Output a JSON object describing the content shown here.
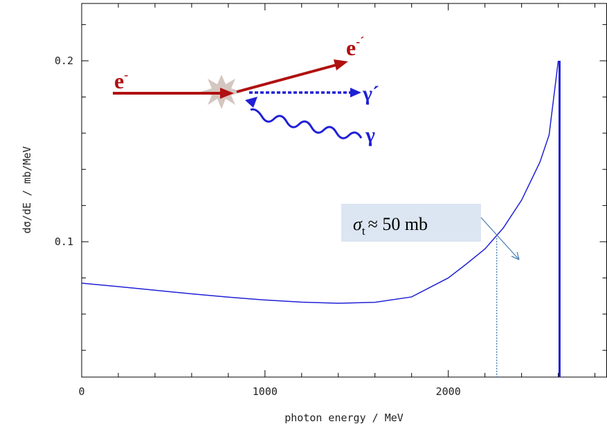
{
  "chart_data": {
    "type": "line",
    "xlabel": "photon energy / MeV",
    "ylabel": "dσ/dE  /  mb/MeV",
    "xlim": [
      0,
      2864
    ],
    "ylim": [
      0.0252,
      0.2317
    ],
    "xticks": [
      0,
      1000,
      2000
    ],
    "yticks": [
      0.1,
      0.2
    ],
    "xminor": [
      200,
      400,
      600,
      800,
      1200,
      1400,
      1600,
      1800,
      2200,
      2400,
      2600,
      2800
    ],
    "yminor": [
      0.04,
      0.06,
      0.08,
      0.12,
      0.14,
      0.16,
      0.18,
      0.22
    ],
    "series": [
      {
        "color": "#1f1fd6",
        "x": [
          0,
          200,
          400,
          600,
          800,
          1000,
          1200,
          1400,
          1600,
          1800,
          2000,
          2100,
          2200,
          2300,
          2400,
          2500,
          2550,
          2600
        ],
        "values": [
          0.0771,
          0.0752,
          0.0732,
          0.0712,
          0.0694,
          0.0678,
          0.0666,
          0.066,
          0.0665,
          0.0695,
          0.08,
          0.0878,
          0.096,
          0.1076,
          0.123,
          0.144,
          0.159,
          0.2
        ]
      },
      {
        "color": "#1f1fd6",
        "x": [
          2607,
          2607
        ],
        "values": [
          0.2,
          0.0252
        ]
      }
    ],
    "marker": {
      "x": 2264,
      "y": 0.102,
      "color": "#4a7fb5"
    },
    "annotation": {
      "symbol": "σ",
      "sub": "t",
      "text": "≈ 50 mb"
    },
    "inset": {
      "e_in": {
        "base": "e",
        "sup": "-"
      },
      "e_out": {
        "base": "e",
        "sup": "-´"
      },
      "gamma_out": "γ´",
      "gamma_in": "γ"
    }
  }
}
